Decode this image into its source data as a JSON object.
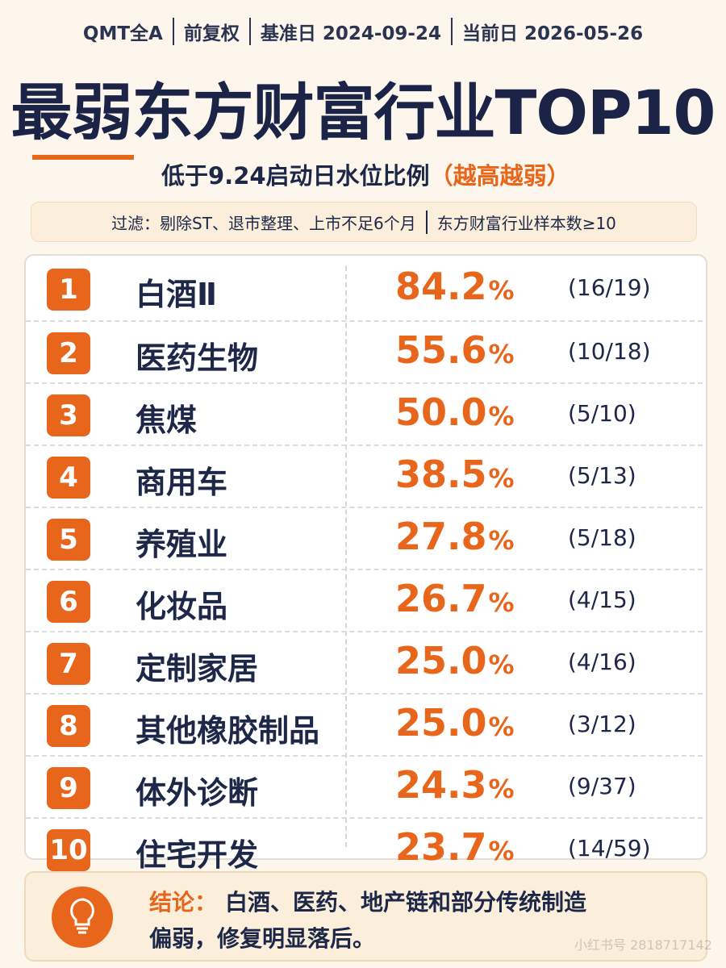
{
  "header": {
    "meta": [
      "QMT全A",
      "前复权",
      "基准日 2024-09-24",
      "当前日 2026-05-26"
    ],
    "title": "最弱东方财富行业TOP10",
    "subtitle": "低于9.24启动日水位比例",
    "subtitle_note": "（越高越弱）",
    "filters": [
      "过滤：剔除ST、退市整理、上市不足6个月",
      "东方财富行业样本数≥10"
    ]
  },
  "table": {
    "rows": [
      {
        "rank": "1",
        "name": "白酒Ⅱ",
        "pct": "84.2",
        "unit": "%",
        "count": "(16/19)"
      },
      {
        "rank": "2",
        "name": "医药生物",
        "pct": "55.6",
        "unit": "%",
        "count": "(10/18)"
      },
      {
        "rank": "3",
        "name": "焦煤",
        "pct": "50.0",
        "unit": "%",
        "count": "(5/10)"
      },
      {
        "rank": "4",
        "name": "商用车",
        "pct": "38.5",
        "unit": "%",
        "count": "(5/13)"
      },
      {
        "rank": "5",
        "name": "养殖业",
        "pct": "27.8",
        "unit": "%",
        "count": "(5/18)"
      },
      {
        "rank": "6",
        "name": "化妆品",
        "pct": "26.7",
        "unit": "%",
        "count": "(4/15)"
      },
      {
        "rank": "7",
        "name": "定制家居",
        "pct": "25.0",
        "unit": "%",
        "count": "(4/16)"
      },
      {
        "rank": "8",
        "name": "其他橡胶制品",
        "pct": "25.0",
        "unit": "%",
        "count": "(3/12)"
      },
      {
        "rank": "9",
        "name": "体外诊断",
        "pct": "24.3",
        "unit": "%",
        "count": "(9/37)"
      },
      {
        "rank": "10",
        "name": "住宅开发",
        "pct": "23.7",
        "unit": "%",
        "count": "(14/59)"
      }
    ]
  },
  "conclusion": {
    "label": "结论：",
    "line1": "白酒、医药、地产链和部分传统制造",
    "line2": "偏弱，修复明显落后。"
  },
  "watermark": "小红书号 2818717142"
}
